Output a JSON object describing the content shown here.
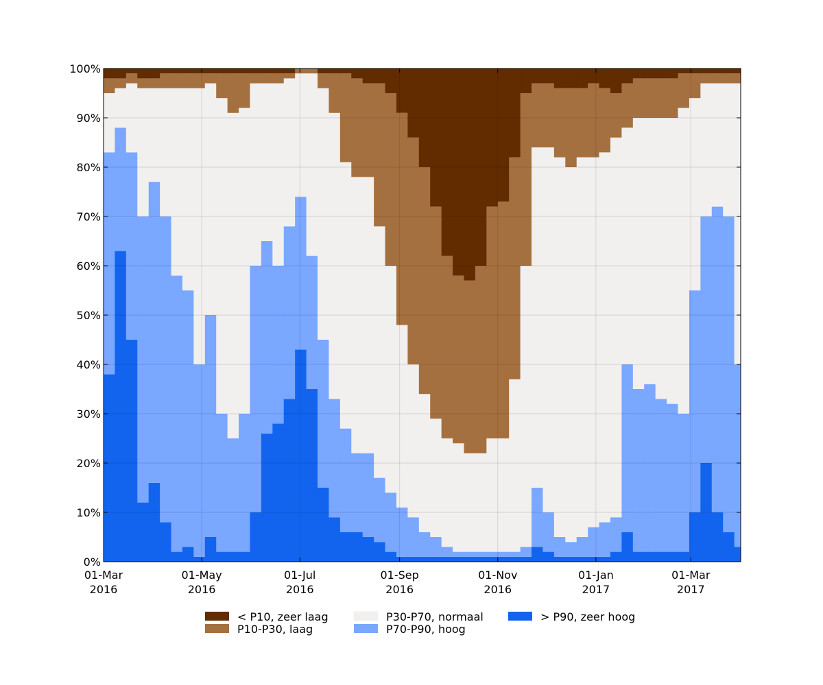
{
  "chart_data": {
    "type": "stacked-step-area",
    "x": [
      "2016-03-01",
      "2016-03-08",
      "2016-03-15",
      "2016-03-22",
      "2016-03-29",
      "2016-04-05",
      "2016-04-12",
      "2016-04-19",
      "2016-04-26",
      "2016-05-03",
      "2016-05-10",
      "2016-05-17",
      "2016-05-24",
      "2016-05-31",
      "2016-06-07",
      "2016-06-14",
      "2016-06-21",
      "2016-06-28",
      "2016-07-05",
      "2016-07-12",
      "2016-07-19",
      "2016-07-26",
      "2016-08-02",
      "2016-08-09",
      "2016-08-16",
      "2016-08-23",
      "2016-08-30",
      "2016-09-06",
      "2016-09-13",
      "2016-09-20",
      "2016-09-27",
      "2016-10-04",
      "2016-10-11",
      "2016-10-18",
      "2016-10-25",
      "2016-11-01",
      "2016-11-08",
      "2016-11-15",
      "2016-11-22",
      "2016-11-29",
      "2016-12-06",
      "2016-12-13",
      "2016-12-20",
      "2016-12-27",
      "2017-01-03",
      "2017-01-10",
      "2017-01-17",
      "2017-01-24",
      "2017-01-31",
      "2017-02-07",
      "2017-02-14",
      "2017-02-21",
      "2017-02-28",
      "2017-03-07",
      "2017-03-14",
      "2017-03-21",
      "2017-03-28"
    ],
    "series": [
      {
        "name": "< P10, zeer laag",
        "color": "#622b00",
        "values": [
          2,
          2,
          1,
          2,
          2,
          1,
          1,
          1,
          1,
          1,
          1,
          1,
          1,
          1,
          1,
          1,
          1,
          0,
          0,
          1,
          1,
          1,
          2,
          3,
          3,
          5,
          9,
          14,
          20,
          28,
          38,
          42,
          43,
          40,
          28,
          27,
          18,
          5,
          3,
          3,
          4,
          4,
          4,
          3,
          4,
          5,
          3,
          2,
          2,
          2,
          2,
          1,
          1,
          1,
          1,
          1,
          1
        ]
      },
      {
        "name": "P10-P30, laag",
        "color": "#a5703f",
        "values": [
          3,
          2,
          2,
          2,
          2,
          3,
          3,
          3,
          3,
          2,
          5,
          8,
          7,
          2,
          2,
          2,
          1,
          1,
          1,
          3,
          8,
          18,
          20,
          19,
          29,
          35,
          43,
          46,
          46,
          43,
          37,
          34,
          35,
          38,
          47,
          48,
          45,
          35,
          13,
          13,
          14,
          16,
          14,
          15,
          13,
          9,
          9,
          8,
          8,
          8,
          8,
          7,
          5,
          2,
          2,
          2,
          2
        ]
      },
      {
        "name": "P30-P70, normaal",
        "color": "#f2f0ef",
        "values": [
          12,
          8,
          14,
          26,
          19,
          26,
          38,
          41,
          56,
          47,
          64,
          66,
          62,
          37,
          32,
          37,
          30,
          25,
          37,
          51,
          58,
          54,
          56,
          56,
          51,
          46,
          37,
          31,
          28,
          24,
          22,
          22,
          20,
          20,
          23,
          23,
          35,
          57,
          69,
          74,
          77,
          76,
          77,
          75,
          75,
          77,
          48,
          55,
          54,
          57,
          58,
          62,
          39,
          27,
          25,
          27,
          57
        ]
      },
      {
        "name": "P70-P90, hoog",
        "color": "#7aa7ff",
        "values": [
          45,
          25,
          38,
          58,
          61,
          62,
          56,
          52,
          39,
          45,
          28,
          23,
          28,
          50,
          39,
          32,
          35,
          31,
          27,
          30,
          24,
          21,
          16,
          17,
          13,
          12,
          10,
          8,
          5,
          4,
          2,
          1,
          1,
          1,
          1,
          1,
          1,
          2,
          12,
          8,
          4,
          3,
          4,
          6,
          7,
          7,
          34,
          33,
          34,
          31,
          30,
          28,
          45,
          50,
          62,
          64,
          37
        ]
      },
      {
        "name": "> P90, zeer hoog",
        "color": "#1264ef",
        "values": [
          38,
          63,
          45,
          12,
          16,
          8,
          2,
          3,
          1,
          5,
          2,
          2,
          2,
          10,
          26,
          28,
          33,
          43,
          35,
          15,
          9,
          6,
          6,
          5,
          4,
          2,
          1,
          1,
          1,
          1,
          1,
          1,
          1,
          1,
          1,
          1,
          1,
          1,
          3,
          2,
          1,
          1,
          1,
          1,
          1,
          2,
          6,
          2,
          2,
          2,
          2,
          2,
          10,
          20,
          10,
          6,
          3
        ]
      }
    ],
    "xlim": [
      "2016-03-01",
      "2017-04-01"
    ],
    "xticks": [
      {
        "value": "2016-03-01",
        "label": "01-Mar\n2016"
      },
      {
        "value": "2016-05-01",
        "label": "01-May\n2016"
      },
      {
        "value": "2016-07-01",
        "label": "01-Jul\n2016"
      },
      {
        "value": "2016-09-01",
        "label": "01-Sep\n2016"
      },
      {
        "value": "2016-11-01",
        "label": "01-Nov\n2016"
      },
      {
        "value": "2017-01-01",
        "label": "01-Jan\n2017"
      },
      {
        "value": "2017-03-01",
        "label": "01-Mar\n2017"
      }
    ],
    "ylim": [
      0,
      100
    ],
    "yticks": [
      {
        "value": 0,
        "label": "0%"
      },
      {
        "value": 10,
        "label": "10%"
      },
      {
        "value": 20,
        "label": "20%"
      },
      {
        "value": 30,
        "label": "30%"
      },
      {
        "value": 40,
        "label": "40%"
      },
      {
        "value": 50,
        "label": "50%"
      },
      {
        "value": 60,
        "label": "60%"
      },
      {
        "value": 70,
        "label": "70%"
      },
      {
        "value": 80,
        "label": "80%"
      },
      {
        "value": 90,
        "label": "90%"
      },
      {
        "value": 100,
        "label": "100%"
      }
    ],
    "grid": true,
    "legend": "bottom"
  }
}
